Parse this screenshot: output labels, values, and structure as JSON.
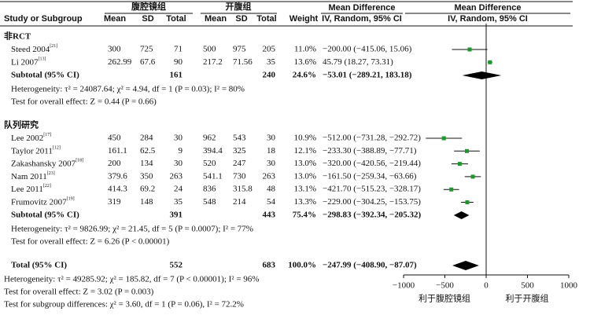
{
  "chart_data": {
    "type": "forest",
    "headers": {
      "group1": "腹腔镜组",
      "group2": "开腹组",
      "study": "Study or Subgroup",
      "mean": "Mean",
      "sd": "SD",
      "total": "Total",
      "weight": "Weight",
      "md": "Mean Difference",
      "md_sub": "IV, Random, 95% CI"
    },
    "subgroups": [
      {
        "name": "非RCT",
        "studies": [
          {
            "name": "Steed 2004",
            "ref": "[21]",
            "lap": [
              "300",
              "725",
              "71"
            ],
            "open": [
              "500",
              "975",
              "205"
            ],
            "weight": "11.0%",
            "ci_label": "−200.00 (−415.06, 15.06)",
            "md": -200.0,
            "lo": -415.06,
            "hi": 15.06
          },
          {
            "name": "Li 2007",
            "ref": "[13]",
            "lap": [
              "262.99",
              "67.6",
              "90"
            ],
            "open": [
              "217.2",
              "71.56",
              "35"
            ],
            "weight": "13.6%",
            "ci_label": "45.79 (18.27, 73.31)",
            "md": 45.79,
            "lo": 18.27,
            "hi": 73.31
          }
        ],
        "subtotal": {
          "name": "Subtotal (95% CI)",
          "lap_total": "161",
          "open_total": "240",
          "weight": "24.6%",
          "ci_label": "−53.01 (−289.21, 183.18)",
          "md": -53.01,
          "lo": -289.21,
          "hi": 183.18
        },
        "heterogeneity": "Heterogeneity: τ² = 24087.64; χ² = 4.94, df = 1 (P = 0.03); I² = 80%",
        "overall": "Test for overall effect: Z = 0.44 (P = 0.66)"
      },
      {
        "name": "队列研究",
        "studies": [
          {
            "name": "Lee 2002",
            "ref": "[17]",
            "lap": [
              "450",
              "284",
              "30"
            ],
            "open": [
              "962",
              "543",
              "30"
            ],
            "weight": "10.9%",
            "ci_label": "−512.00 (−731.28, −292.72)",
            "md": -512.0,
            "lo": -731.28,
            "hi": -292.72
          },
          {
            "name": "Taylor 2011",
            "ref": "[12]",
            "lap": [
              "161.1",
              "62.5",
              "9"
            ],
            "open": [
              "394.4",
              "325",
              "18"
            ],
            "weight": "12.1%",
            "ci_label": "−233.30 (−388.89, −77.71)",
            "md": -233.3,
            "lo": -388.89,
            "hi": -77.71
          },
          {
            "name": "Zakashansky 2007",
            "ref": "[18]",
            "lap": [
              "200",
              "134",
              "30"
            ],
            "open": [
              "520",
              "247",
              "30"
            ],
            "weight": "13.0%",
            "ci_label": "−320.00 (−420.56, −219.44)",
            "md": -320.0,
            "lo": -420.56,
            "hi": -219.44
          },
          {
            "name": "Nam 2011",
            "ref": "[23]",
            "lap": [
              "379.6",
              "350",
              "263"
            ],
            "open": [
              "541.1",
              "730",
              "263"
            ],
            "weight": "13.0%",
            "ci_label": "−161.50 (−259.34, −63.66)",
            "md": -161.5,
            "lo": -259.34,
            "hi": -63.66
          },
          {
            "name": "Lee 2011",
            "ref": "[22]",
            "lap": [
              "414.3",
              "69.2",
              "24"
            ],
            "open": [
              "836",
              "315.8",
              "48"
            ],
            "weight": "13.1%",
            "ci_label": "−421.70 (−515.23, −328.17)",
            "md": -421.7,
            "lo": -515.23,
            "hi": -328.17
          },
          {
            "name": "Frumovitz 2007",
            "ref": "[19]",
            "lap": [
              "319",
              "148",
              "35"
            ],
            "open": [
              "548",
              "214",
              "54"
            ],
            "weight": "13.3%",
            "ci_label": "−229.00 (−304.25, −153.75)",
            "md": -229.0,
            "lo": -304.25,
            "hi": -153.75
          }
        ],
        "subtotal": {
          "name": "Subtotal (95% CI)",
          "lap_total": "391",
          "open_total": "443",
          "weight": "75.4%",
          "ci_label": "−298.83 (−392.34, −205.32)",
          "md": -298.83,
          "lo": -392.34,
          "hi": -205.32
        },
        "heterogeneity": "Heterogeneity: τ² = 9826.99; χ² = 21.45, df = 5 (P = 0.0007); I² = 77%",
        "overall": "Test for overall effect: Z = 6.26 (P < 0.00001)"
      }
    ],
    "total": {
      "name": "Total (95% CI)",
      "lap_total": "552",
      "open_total": "683",
      "weight": "100.0%",
      "ci_label": "−247.99 (−408.90, −87.07)",
      "md": -247.99,
      "lo": -408.9,
      "hi": -87.07
    },
    "total_heterogeneity": "Heterogeneity: τ² = 49285.92; χ² = 185.82, df = 7 (P < 0.00001); I² = 96%",
    "total_overall": "Test for overall effect: Z = 3.02 (P = 0.003)",
    "subgroup_differences": "Test for subgroup differences: χ² = 3.60, df = 1 (P = 0.06), I² = 72.2%",
    "xlim": [
      -1000,
      1000
    ],
    "xticks": [
      {
        "value": -1000,
        "label": "−1000"
      },
      {
        "value": -500,
        "label": "−500"
      },
      0,
      500,
      1000
    ],
    "favours_left": "利于腹腔镜组",
    "favours_right": "利于开腹组",
    "square_color": "#1a9a2a",
    "diamond_color": "#000000"
  }
}
